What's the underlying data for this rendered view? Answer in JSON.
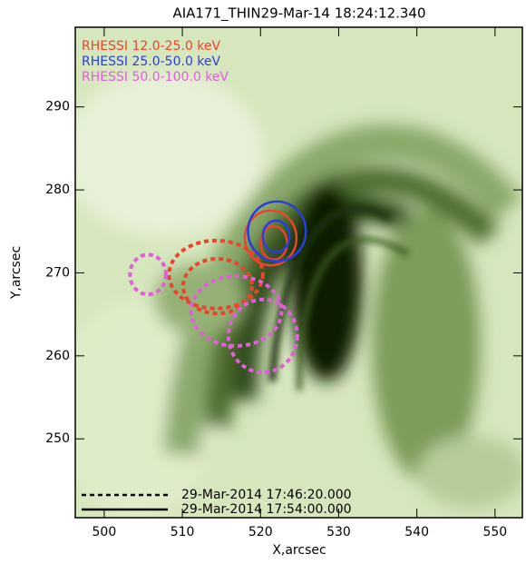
{
  "chart_data": {
    "type": "contour",
    "title": "AIA171_THIN29-Mar-14  18:24:12.340",
    "x_label": "X,arcsec",
    "y_label": "Y,arcsec",
    "xlim": [
      496.3,
      553.5
    ],
    "ylim": [
      240.5,
      299.6
    ],
    "xticks": [
      500,
      510,
      520,
      530,
      540,
      550
    ],
    "yticks": [
      250,
      260,
      270,
      280,
      290
    ],
    "series": [
      {
        "name": "RHESSI 12.0-25.0 keV",
        "color": "#e8452c",
        "contours": [
          {
            "x": 514.3,
            "y": 269.8,
            "rx": 6.0,
            "ry": 4.1,
            "style": "dashed"
          },
          {
            "x": 514.5,
            "y": 268.4,
            "rx": 4.4,
            "ry": 3.3,
            "style": "dashed"
          },
          {
            "x": 521.3,
            "y": 274.2,
            "rx": 3.3,
            "ry": 3.3,
            "style": "solid"
          },
          {
            "x": 521.7,
            "y": 273.6,
            "rx": 1.7,
            "ry": 2.0,
            "style": "solid"
          }
        ]
      },
      {
        "name": "RHESSI 25.0-50.0 keV",
        "color": "#2a3ee0",
        "contours": [
          {
            "x": 522.1,
            "y": 275.0,
            "rx": 3.7,
            "ry": 3.6,
            "style": "solid"
          },
          {
            "x": 522.0,
            "y": 274.4,
            "rx": 1.7,
            "ry": 1.9,
            "style": "solid"
          }
        ]
      },
      {
        "name": "RHESSI 50.0-100.0 keV",
        "color": "#e060d8",
        "contours": [
          {
            "x": 505.6,
            "y": 269.8,
            "rx": 2.3,
            "ry": 2.4,
            "style": "dashed"
          },
          {
            "x": 516.9,
            "y": 265.4,
            "rx": 5.8,
            "ry": 4.2,
            "style": "dashed"
          },
          {
            "x": 520.3,
            "y": 262.4,
            "rx": 4.4,
            "ry": 4.4,
            "style": "dashed"
          }
        ]
      }
    ],
    "line_styles": [
      {
        "style": "dashed",
        "label": "29-Mar-2014  17:46:20.000"
      },
      {
        "style": "solid",
        "label": "29-Mar-2014  17:54:00.000"
      }
    ]
  }
}
